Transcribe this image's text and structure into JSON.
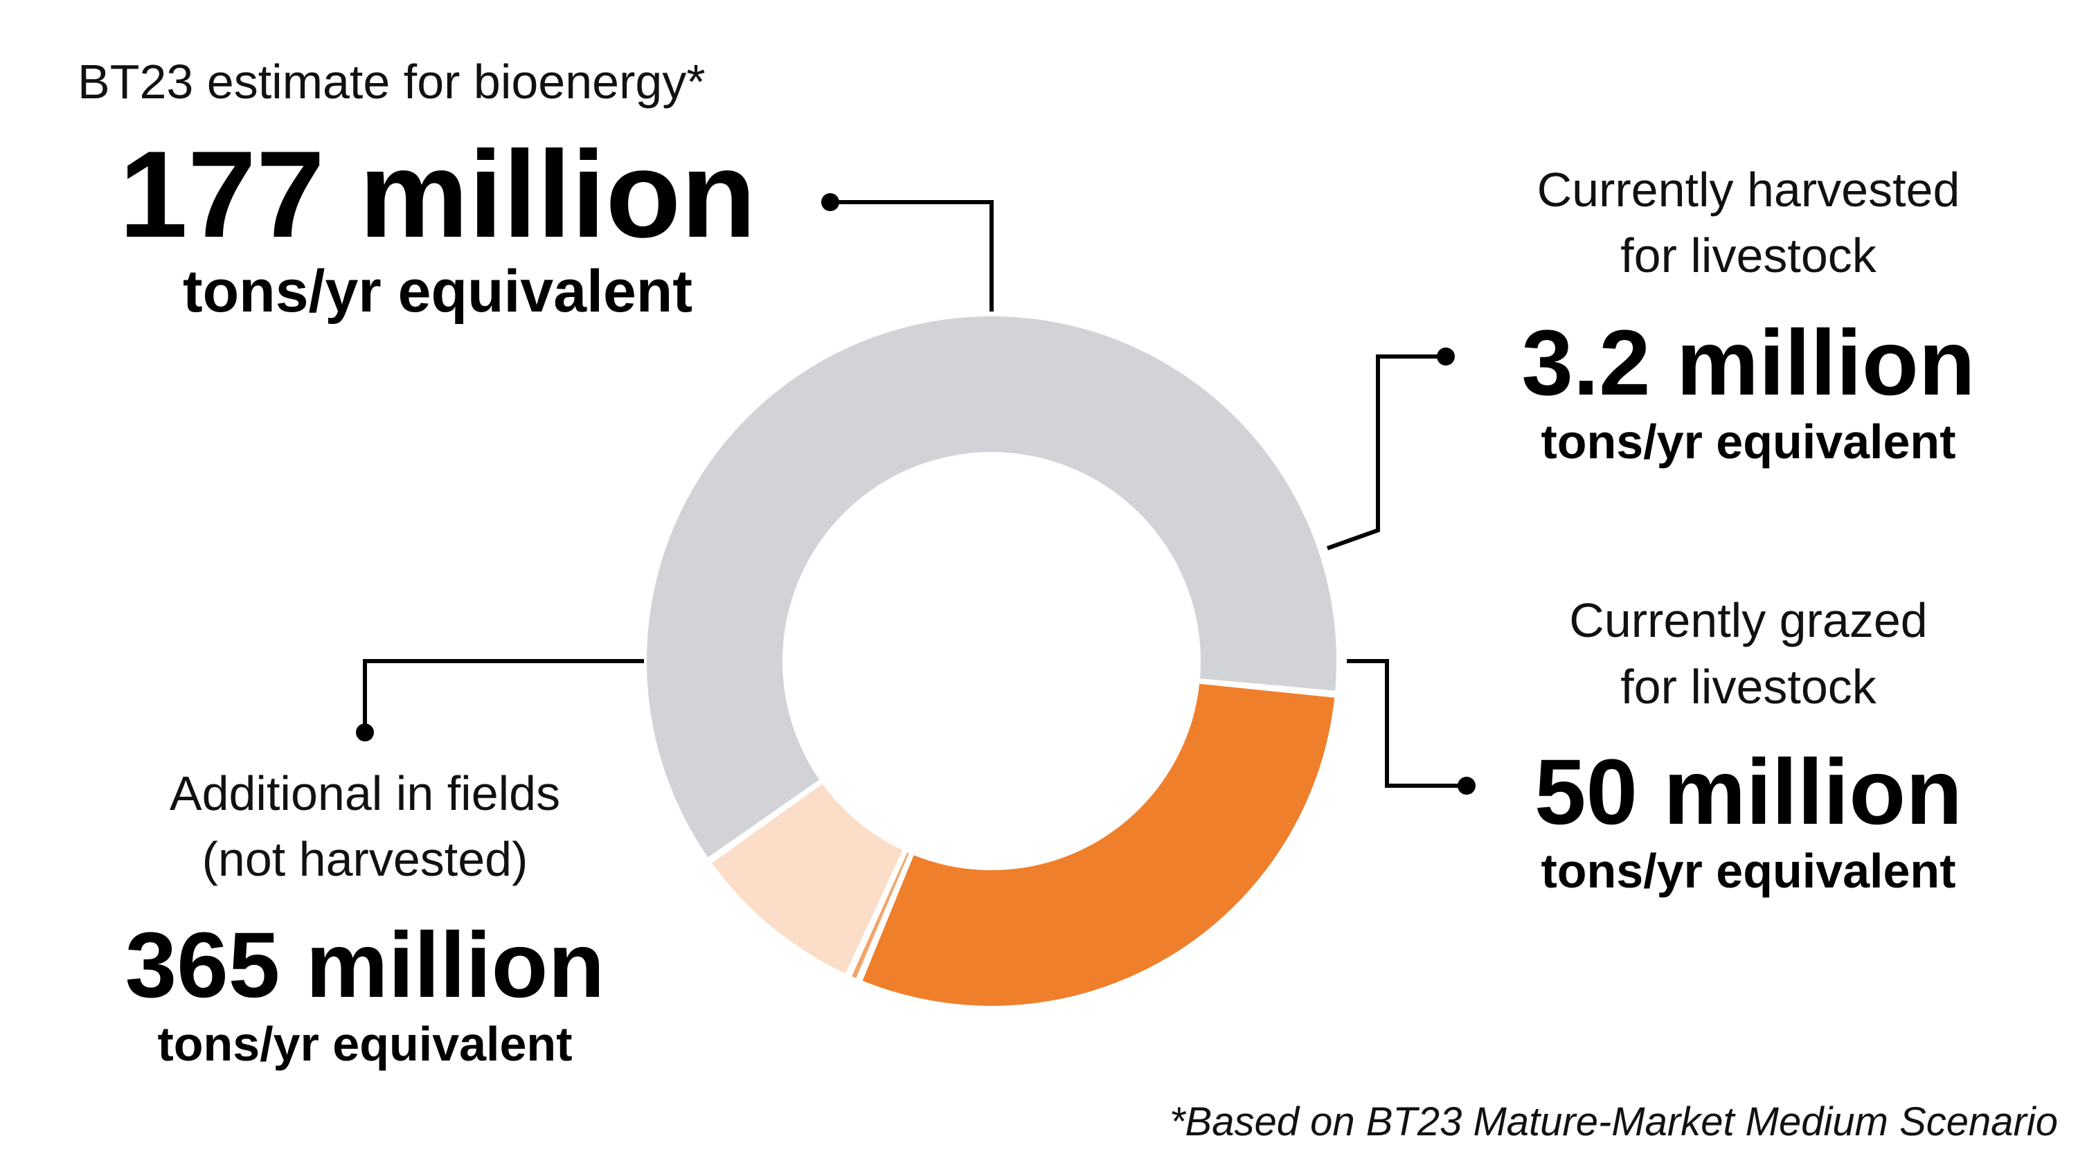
{
  "chart_data": {
    "type": "pie",
    "variant": "donut",
    "series": [
      {
        "caption_lines": [
          "BT23 estimate for bioenergy*"
        ],
        "value_label": "177 million",
        "unit_label": "tons/yr equivalent",
        "value": 177,
        "color": "#F07F2B"
      },
      {
        "caption_lines": [
          "Currently harvested",
          "for livestock"
        ],
        "value_label": "3.2 million",
        "unit_label": "tons/yr equivalent",
        "value": 3.2,
        "color": "#F4A369"
      },
      {
        "caption_lines": [
          "Currently grazed",
          "for livestock"
        ],
        "value_label": "50 million",
        "unit_label": "tons/yr equivalent",
        "value": 50,
        "color": "#FBDDC8"
      },
      {
        "caption_lines": [
          "Additional in fields",
          "(not harvested)"
        ],
        "value_label": "365 million",
        "unit_label": "tons/yr equivalent",
        "value": 365,
        "color": "#D1D3D6"
      }
    ],
    "footnote": "*Based on BT23 Mature-Market Medium Scenario"
  }
}
